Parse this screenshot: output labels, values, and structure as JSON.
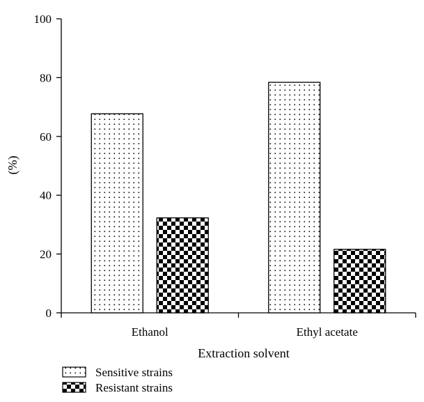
{
  "chart_data": {
    "type": "bar",
    "title": "",
    "xlabel": "Extraction solvent",
    "ylabel": "(%)",
    "ylim": [
      0,
      100
    ],
    "yticks": [
      0,
      20,
      40,
      60,
      80,
      100
    ],
    "categories": [
      "Ethanol",
      "Ethyl acetate"
    ],
    "series": [
      {
        "name": "Sensitive strains",
        "values": [
          67.7,
          78.4
        ],
        "pattern": "dots",
        "color": "#000000"
      },
      {
        "name": "Resistant strains",
        "values": [
          32.3,
          21.6
        ],
        "pattern": "checker",
        "color": "#000000"
      }
    ],
    "grid": false,
    "legend_position": "bottom-left"
  }
}
